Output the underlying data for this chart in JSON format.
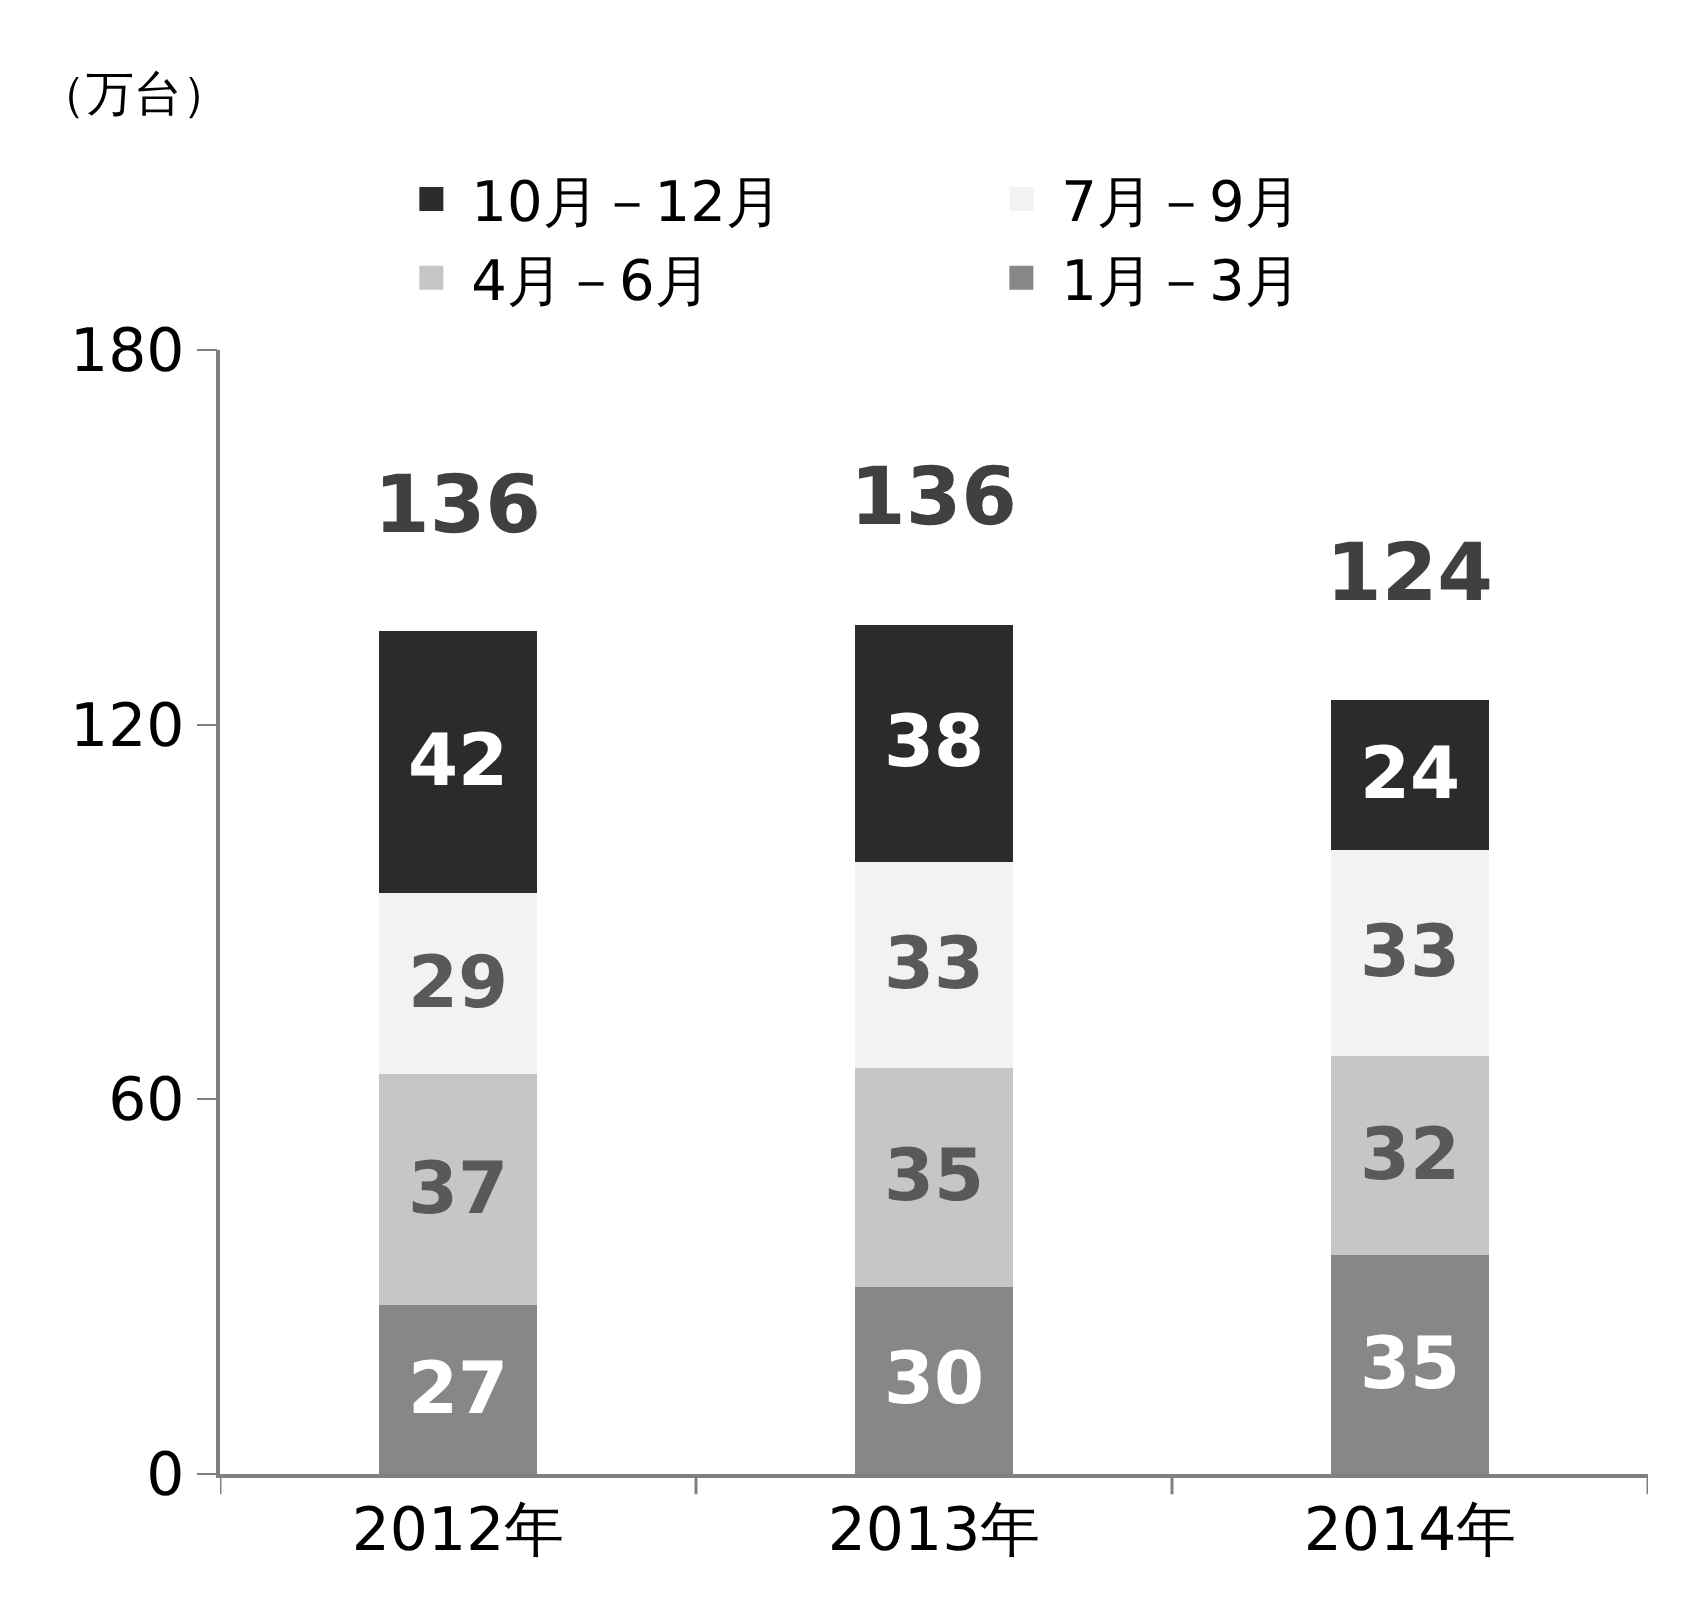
{
  "chart_data": {
    "type": "bar",
    "stacked": true,
    "ylabel": "（万台）",
    "categories": [
      "2012年",
      "2013年",
      "2014年"
    ],
    "series": [
      {
        "name": "1月－3月",
        "color": "#878787",
        "values": [
          27,
          30,
          35
        ]
      },
      {
        "name": "4月－6月",
        "color": "#c6c6c6",
        "values": [
          37,
          35,
          32
        ]
      },
      {
        "name": "7月－9月",
        "color": "#f2f2f2",
        "values": [
          29,
          33,
          33
        ]
      },
      {
        "name": "10月－12月",
        "color": "#2b2b2b",
        "values": [
          42,
          38,
          24
        ]
      }
    ],
    "ylim": [
      0,
      180
    ],
    "yticks": [
      0,
      60,
      120,
      180
    ],
    "data_labels": true,
    "totals": [
      "136",
      "136",
      "124"
    ],
    "legend": "top"
  }
}
